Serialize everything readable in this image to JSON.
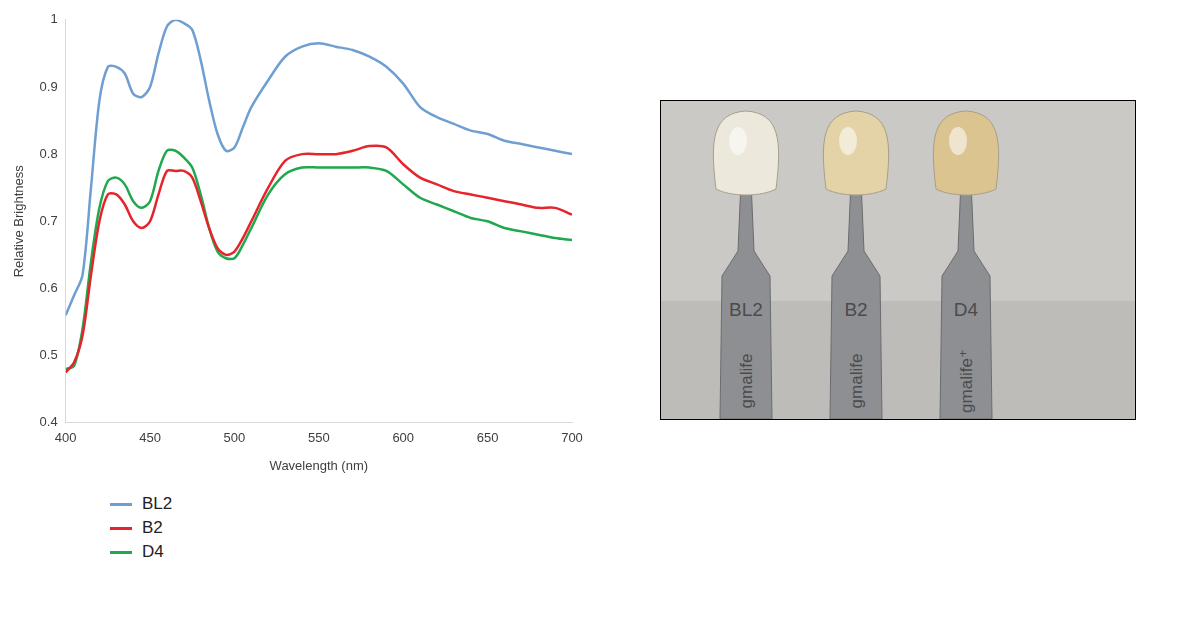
{
  "chart_data": {
    "type": "line",
    "x_label": "Wavelength (nm)",
    "y_label": "Relative Brightness",
    "x": [
      400,
      405,
      410,
      415,
      420,
      425,
      430,
      435,
      440,
      445,
      450,
      455,
      460,
      465,
      470,
      475,
      480,
      485,
      490,
      495,
      500,
      505,
      510,
      520,
      530,
      540,
      550,
      560,
      570,
      580,
      590,
      600,
      610,
      620,
      630,
      640,
      650,
      660,
      670,
      680,
      690,
      700
    ],
    "series": [
      {
        "name": "BL2",
        "color": "#6f9fd1",
        "values": [
          0.56,
          0.59,
          0.62,
          0.75,
          0.88,
          0.93,
          0.93,
          0.92,
          0.89,
          0.885,
          0.9,
          0.95,
          0.99,
          1.0,
          0.995,
          0.985,
          0.94,
          0.88,
          0.83,
          0.805,
          0.81,
          0.84,
          0.87,
          0.91,
          0.945,
          0.96,
          0.965,
          0.96,
          0.955,
          0.945,
          0.93,
          0.905,
          0.87,
          0.855,
          0.845,
          0.835,
          0.83,
          0.82,
          0.815,
          0.81,
          0.805,
          0.8
        ]
      },
      {
        "name": "B2",
        "color": "#e5242b",
        "values": [
          0.475,
          0.49,
          0.53,
          0.62,
          0.7,
          0.74,
          0.74,
          0.725,
          0.7,
          0.69,
          0.7,
          0.74,
          0.775,
          0.775,
          0.775,
          0.765,
          0.73,
          0.69,
          0.66,
          0.65,
          0.655,
          0.675,
          0.7,
          0.75,
          0.79,
          0.8,
          0.8,
          0.8,
          0.805,
          0.812,
          0.81,
          0.785,
          0.765,
          0.755,
          0.745,
          0.74,
          0.735,
          0.73,
          0.725,
          0.72,
          0.72,
          0.71
        ]
      },
      {
        "name": "D4",
        "color": "#1fa84d",
        "values": [
          0.48,
          0.485,
          0.54,
          0.64,
          0.72,
          0.76,
          0.765,
          0.755,
          0.73,
          0.72,
          0.73,
          0.775,
          0.805,
          0.805,
          0.795,
          0.78,
          0.74,
          0.69,
          0.655,
          0.645,
          0.645,
          0.665,
          0.69,
          0.74,
          0.77,
          0.78,
          0.78,
          0.78,
          0.78,
          0.78,
          0.775,
          0.755,
          0.735,
          0.725,
          0.715,
          0.705,
          0.7,
          0.69,
          0.685,
          0.68,
          0.675,
          0.672
        ]
      }
    ],
    "xlim": [
      400,
      700
    ],
    "xticks": [
      400,
      450,
      500,
      550,
      600,
      650,
      700
    ],
    "ylim": [
      0.4,
      1
    ],
    "yticks": [
      0.4,
      0.5,
      0.6,
      0.7,
      0.8,
      0.9,
      1
    ],
    "grid": false,
    "legend": "bottom"
  },
  "photo": {
    "tabs": [
      {
        "label": "BL2",
        "brand": "gmalife",
        "color": "#ece8dc"
      },
      {
        "label": "B2",
        "brand": "gmalife",
        "color": "#e3d3a6"
      },
      {
        "label": "D4",
        "brand": "gmalife⁺",
        "color": "#dcc491"
      }
    ]
  }
}
